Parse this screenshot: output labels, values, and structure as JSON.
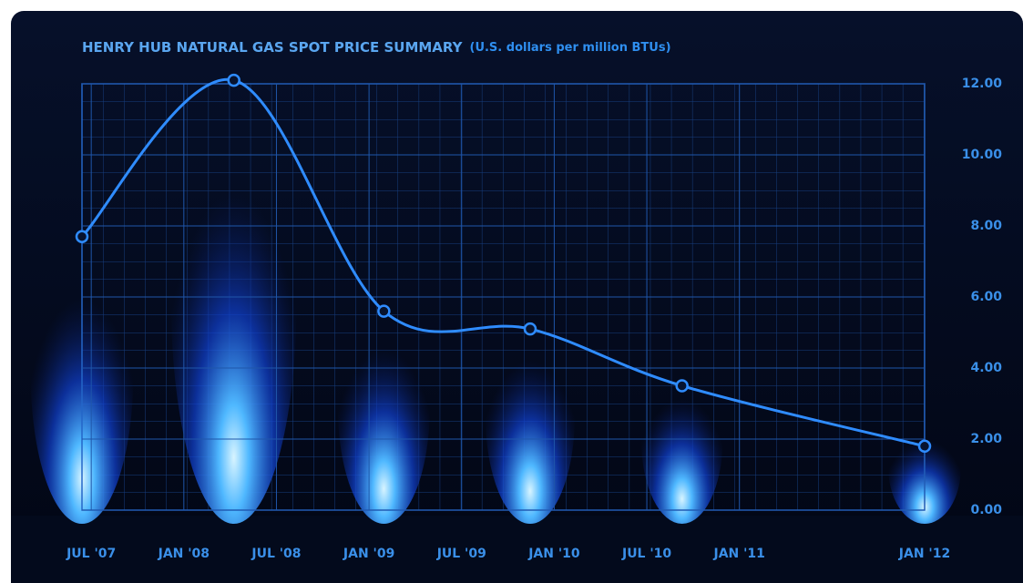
{
  "chart_data": {
    "type": "line",
    "title": "HENRY HUB NATURAL GAS SPOT PRICE SUMMARY",
    "subtitle": "(U.S. dollars per million BTUs)",
    "series": [
      {
        "color": "#2f8cff",
        "x": [
          2007.45,
          2008.27,
          2009.08,
          2009.87,
          2010.69,
          2012.0
        ],
        "values": [
          7.7,
          12.1,
          5.6,
          5.1,
          3.5,
          1.8
        ]
      }
    ],
    "xlim": [
      2007.45,
      2012.0
    ],
    "xticks": [
      {
        "value": 2007.5,
        "label": "JUL '07"
      },
      {
        "value": 2008.0,
        "label": "JAN '08"
      },
      {
        "value": 2008.5,
        "label": "JUL '08"
      },
      {
        "value": 2009.0,
        "label": "JAN '09"
      },
      {
        "value": 2009.5,
        "label": "JUL '09"
      },
      {
        "value": 2010.0,
        "label": "JAN '10"
      },
      {
        "value": 2010.5,
        "label": "JUL '10"
      },
      {
        "value": 2011.0,
        "label": "JAN '11"
      },
      {
        "value": 2012.0,
        "label": "JAN '12"
      }
    ],
    "ylim": [
      0,
      12
    ],
    "yticks": [
      {
        "value": 0,
        "label": "0.00"
      },
      {
        "value": 2,
        "label": "2.00"
      },
      {
        "value": 4,
        "label": "4.00"
      },
      {
        "value": 6,
        "label": "6.00"
      },
      {
        "value": 8,
        "label": "8.00"
      },
      {
        "value": 10,
        "label": "10.00"
      },
      {
        "value": 12,
        "label": "12.00"
      }
    ],
    "grid": true
  }
}
